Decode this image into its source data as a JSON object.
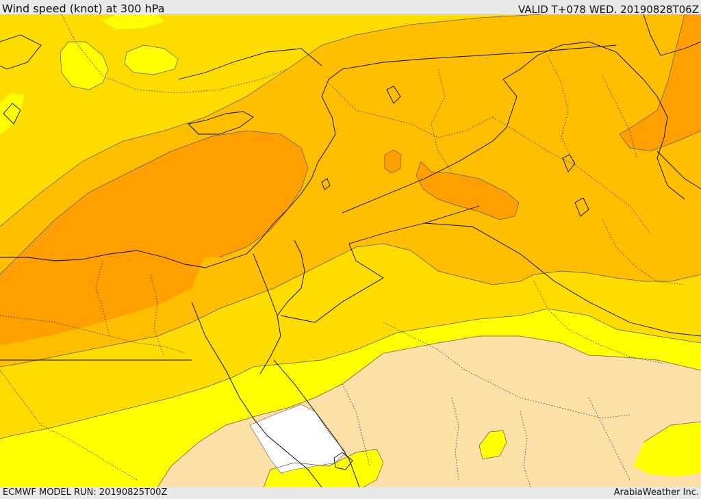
{
  "header": {
    "title": "Wind speed (knot) at 300 hPa",
    "valid": "VALID T+078 WED. 20190828T06Z"
  },
  "footer": {
    "model_run": "ECMWF MODEL RUN: 20190825T00Z",
    "credit": "ArabiaWeather Inc."
  },
  "colors": {
    "band_1": "#fde0a8",
    "band_2": "#ffff00",
    "band_3": "#ffdc00",
    "band_4": "#ffbf00",
    "band_5": "#ffa000",
    "band_6": "#ff9300",
    "white_area": "#ffffff",
    "border_line": "#000000",
    "contour_line": "#555555"
  }
}
